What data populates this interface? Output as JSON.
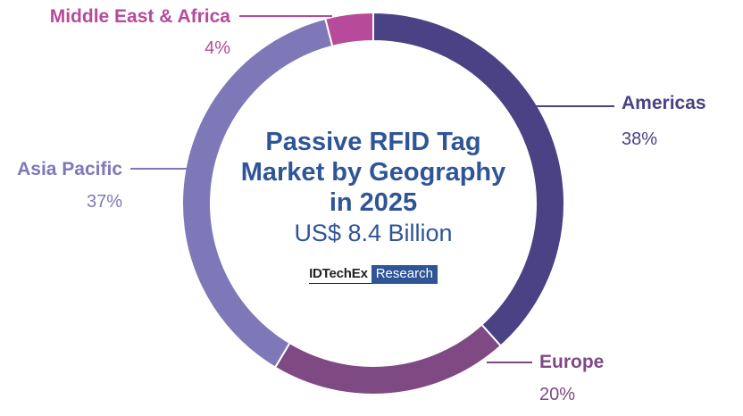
{
  "chart_data": {
    "type": "pie",
    "variant": "donut",
    "title": "Passive RFID Tag Market by Geography in 2025",
    "subtitle": "US$ 8.4 Billion",
    "brand": {
      "name": "IDTechEx",
      "tag": "Research"
    },
    "series": [
      {
        "name": "Americas",
        "value": 38,
        "value_label": "38%",
        "color": "#4a4284"
      },
      {
        "name": "Europe",
        "value": 20,
        "value_label": "20%",
        "color": "#7f4984"
      },
      {
        "name": "Asia Pacific",
        "value": 37,
        "value_label": "37%",
        "color": "#7e78b8"
      },
      {
        "name": "Middle East & Africa",
        "value": 4,
        "value_label": "4%",
        "color": "#b74a9b"
      }
    ]
  }
}
